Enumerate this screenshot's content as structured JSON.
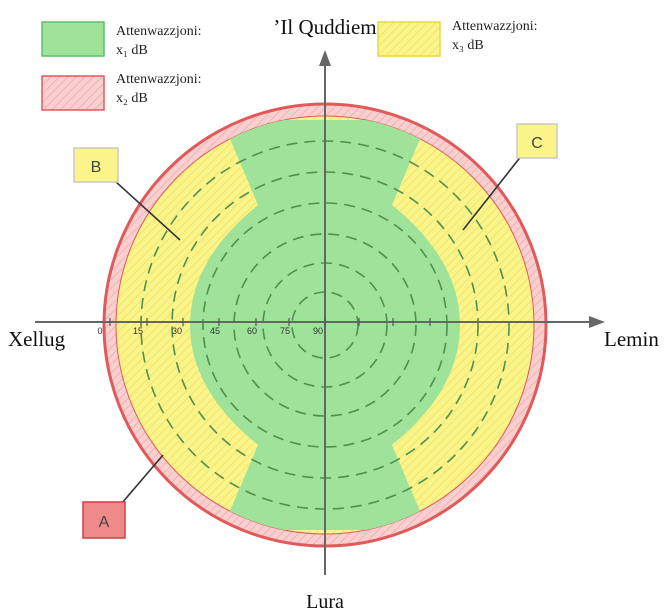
{
  "legend": {
    "x1": {
      "line1": "Attenwazzjoni:",
      "line2": "x₁ dB",
      "color": "#9fe39a",
      "border": "#5cc06a"
    },
    "x2": {
      "line1": "Attenwazzjoni:",
      "line2": "x₂ dB",
      "color": "#f8c9c9",
      "border": "#e05a5a"
    },
    "x3": {
      "line1": "Attenwazzjoni:",
      "line2": "x₃ dB",
      "color": "#fbf48a",
      "border": "#e8d84a"
    }
  },
  "axes": {
    "front": "’Il Quddiem",
    "back": "Lura",
    "left": "Xellug",
    "right": "Lemin"
  },
  "ticks": [
    "0",
    "15",
    "30",
    "45",
    "60",
    "75",
    "90"
  ],
  "labels": {
    "a": "A",
    "b": "B",
    "c": "C"
  },
  "colors": {
    "green": "#9fe39a",
    "yellow": "#fbf48a",
    "red_fill": "#f8c9c9",
    "red_stroke": "#e05a5a",
    "axis": "#666666",
    "dash": "#4f8f4f",
    "label_a_fill": "#f08a8a",
    "label_yellow_fill": "#fbf48a"
  }
}
